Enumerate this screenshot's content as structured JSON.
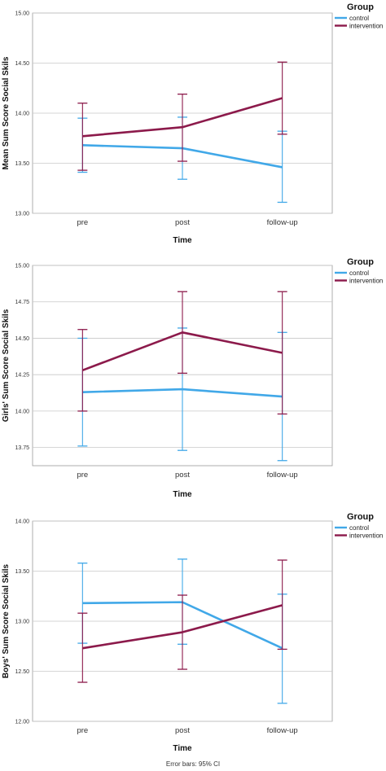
{
  "footnote": "Error bars: 95% CI",
  "legend": {
    "title": "Group",
    "items": [
      {
        "label": "control",
        "color": "#41a8e8"
      },
      {
        "label": "intervention",
        "color": "#8c1a4b"
      }
    ]
  },
  "chart_data": [
    {
      "type": "line",
      "categories": [
        "pre",
        "post",
        "follow-up"
      ],
      "xlabel": "Time",
      "ylabel": "Mean Sum Score Social Skils",
      "ylim": [
        13.0,
        15.0
      ],
      "yticks": [
        "15.00",
        "14.50",
        "14.00",
        "13.50",
        "13.00"
      ],
      "ytick_values": [
        15.0,
        14.5,
        14.0,
        13.5,
        13.0
      ],
      "grid": "horizontal",
      "legend_position": "right",
      "error_bars": "95% CI",
      "series": [
        {
          "name": "control",
          "color": "#41a8e8",
          "values": [
            13.68,
            13.65,
            13.46
          ],
          "lower": [
            13.41,
            13.34,
            13.11
          ],
          "upper": [
            13.95,
            13.96,
            13.82
          ]
        },
        {
          "name": "intervention",
          "color": "#8c1a4b",
          "values": [
            13.77,
            13.86,
            14.15
          ],
          "lower": [
            13.43,
            13.52,
            13.79
          ],
          "upper": [
            14.1,
            14.19,
            14.51
          ]
        }
      ]
    },
    {
      "type": "line",
      "categories": [
        "pre",
        "post",
        "follow-up"
      ],
      "xlabel": "Time",
      "ylabel": "Girls' Sum Score Social Skils",
      "ylim": [
        13.625,
        15.0
      ],
      "yticks": [
        "15.00",
        "14.75",
        "14.50",
        "14.25",
        "14.00",
        "13.75"
      ],
      "ytick_values": [
        15.0,
        14.75,
        14.5,
        14.25,
        14.0,
        13.75
      ],
      "grid": "horizontal",
      "legend_position": "right",
      "error_bars": "95% CI",
      "series": [
        {
          "name": "control",
          "color": "#41a8e8",
          "values": [
            14.13,
            14.15,
            14.1
          ],
          "lower": [
            13.76,
            13.73,
            13.66
          ],
          "upper": [
            14.5,
            14.57,
            14.54
          ]
        },
        {
          "name": "intervention",
          "color": "#8c1a4b",
          "values": [
            14.28,
            14.54,
            14.4
          ],
          "lower": [
            14.0,
            14.26,
            13.98
          ],
          "upper": [
            14.56,
            14.82,
            14.82
          ]
        }
      ]
    },
    {
      "type": "line",
      "categories": [
        "pre",
        "post",
        "follow-up"
      ],
      "xlabel": "Time",
      "ylabel": "Boys' Sum Score Social Skils",
      "ylim": [
        12.0,
        14.0
      ],
      "yticks": [
        "14.00",
        "13.50",
        "13.00",
        "12.50",
        "12.00"
      ],
      "ytick_values": [
        14.0,
        13.5,
        13.0,
        12.5,
        12.0
      ],
      "grid": "horizontal",
      "legend_position": "right",
      "error_bars": "95% CI",
      "series": [
        {
          "name": "control",
          "color": "#41a8e8",
          "values": [
            13.18,
            13.19,
            12.73
          ],
          "lower": [
            12.78,
            12.77,
            12.18
          ],
          "upper": [
            13.58,
            13.62,
            13.27
          ]
        },
        {
          "name": "intervention",
          "color": "#8c1a4b",
          "values": [
            12.73,
            12.89,
            13.16
          ],
          "lower": [
            12.39,
            12.52,
            12.72
          ],
          "upper": [
            13.08,
            13.26,
            13.61
          ]
        }
      ]
    }
  ]
}
